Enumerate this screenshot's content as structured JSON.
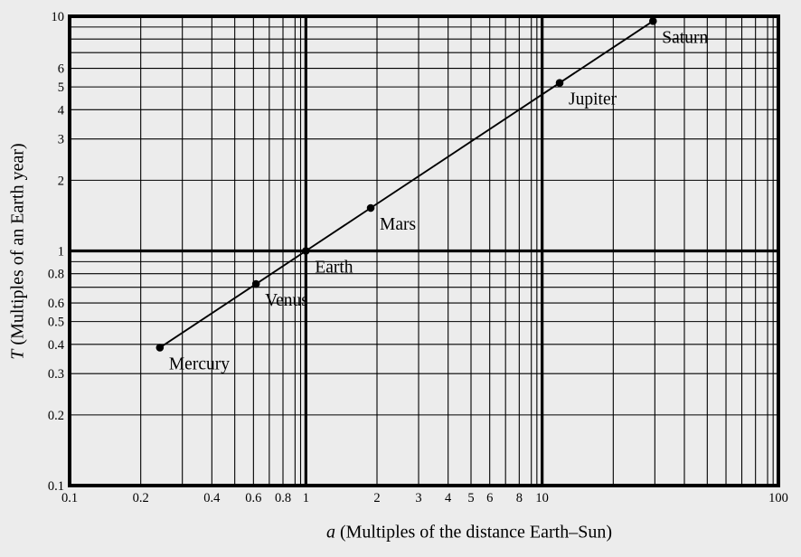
{
  "figure": {
    "background": "#ececec",
    "ink_color": "#000000"
  },
  "chart_data": {
    "type": "scatter",
    "style": "connected points on log-log graph paper",
    "scale": "log-log",
    "title": "",
    "xlabel_var": "a",
    "xlabel_rest": " (Multiples of the distance Earth–Sun)",
    "ylabel_var": "T",
    "ylabel_rest": " (Multiples of an Earth year)",
    "xlim": [
      0.1,
      100
    ],
    "ylim": [
      0.1,
      10
    ],
    "grid": {
      "on": true,
      "x_minor_mantissas": [
        2,
        3,
        4,
        5,
        6,
        7,
        8,
        9,
        9.5
      ],
      "y_minor_mantissas": [
        2,
        3,
        4,
        5,
        6,
        7,
        8,
        9
      ],
      "x_major_values": [
        0.1,
        1,
        10,
        100
      ],
      "y_major_values": [
        0.1,
        1,
        10
      ]
    },
    "x_ticks": [
      {
        "value": 0.1,
        "label": "0.1"
      },
      {
        "value": 0.2,
        "label": "0.2"
      },
      {
        "value": 0.4,
        "label": "0.4"
      },
      {
        "value": 0.6,
        "label": "0.6"
      },
      {
        "value": 0.8,
        "label": "0.8"
      },
      {
        "value": 1,
        "label": "1"
      },
      {
        "value": 2,
        "label": "2"
      },
      {
        "value": 3,
        "label": "3"
      },
      {
        "value": 4,
        "label": "4"
      },
      {
        "value": 5,
        "label": "5"
      },
      {
        "value": 6,
        "label": "6"
      },
      {
        "value": 8,
        "label": "8"
      },
      {
        "value": 10,
        "label": "10"
      },
      {
        "value": 100,
        "label": "100"
      }
    ],
    "y_ticks": [
      {
        "value": 10,
        "label": "10"
      },
      {
        "value": 6,
        "label": "6"
      },
      {
        "value": 5,
        "label": "5"
      },
      {
        "value": 4,
        "label": "4"
      },
      {
        "value": 3,
        "label": "3"
      },
      {
        "value": 2,
        "label": "2"
      },
      {
        "value": 1,
        "label": "1"
      },
      {
        "value": 0.8,
        "label": "0.8"
      },
      {
        "value": 0.6,
        "label": "0.6"
      },
      {
        "value": 0.5,
        "label": "0.5"
      },
      {
        "value": 0.4,
        "label": "0.4"
      },
      {
        "value": 0.3,
        "label": "0.3"
      },
      {
        "value": 0.2,
        "label": "0.2"
      },
      {
        "value": 0.1,
        "label": "0.1"
      }
    ],
    "points": [
      {
        "label": "Mercury",
        "x": 0.241,
        "y": 0.387
      },
      {
        "label": "Venus",
        "x": 0.615,
        "y": 0.723
      },
      {
        "label": "Earth",
        "x": 1.0,
        "y": 1.0
      },
      {
        "label": "Mars",
        "x": 1.881,
        "y": 1.524
      },
      {
        "label": "Jupiter",
        "x": 11.86,
        "y": 5.2
      },
      {
        "label": "Saturn",
        "x": 29.46,
        "y": 9.54
      }
    ]
  }
}
